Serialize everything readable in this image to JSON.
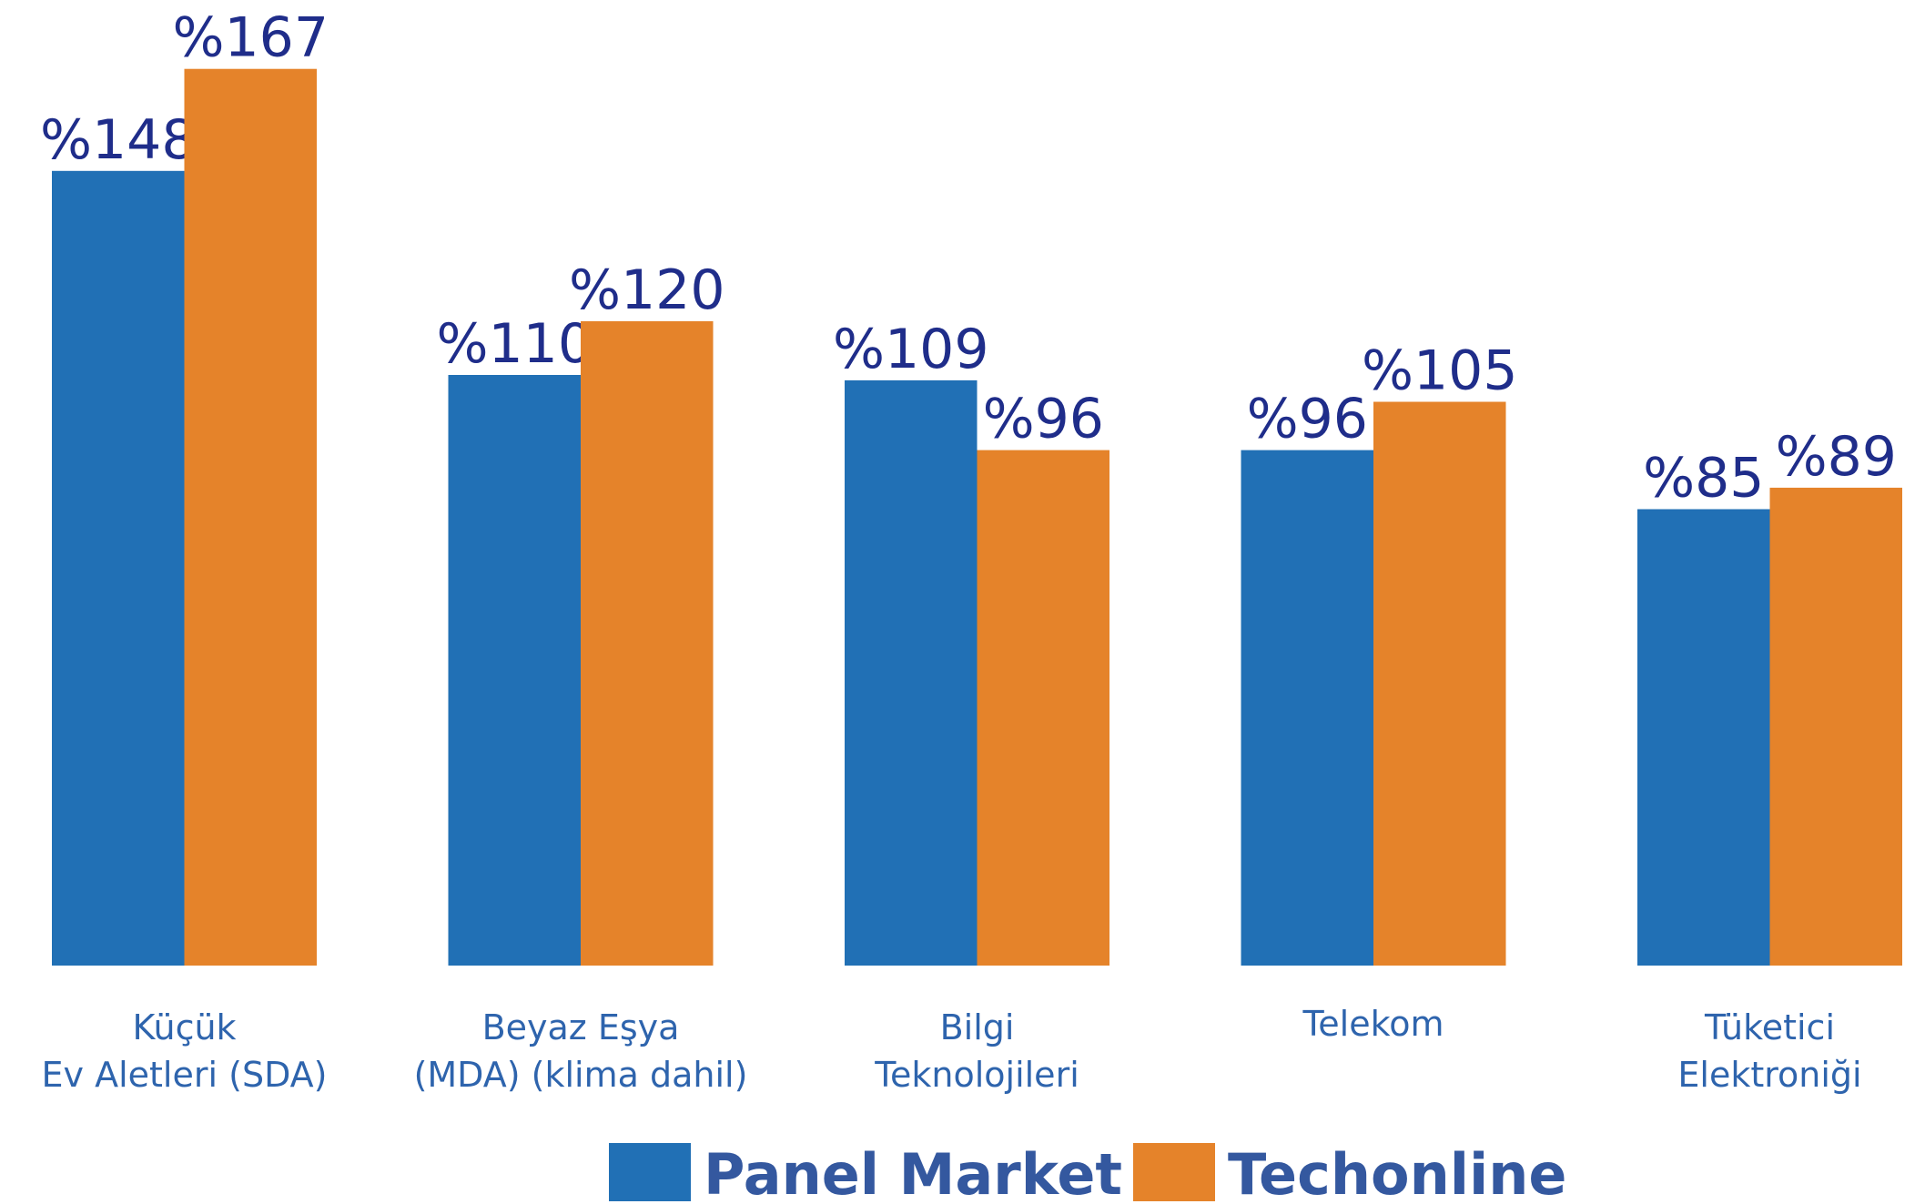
{
  "chart_data": {
    "type": "bar",
    "categories": [
      [
        "Küçük",
        "Ev Aletleri (SDA)"
      ],
      [
        "Beyaz Eşya",
        "(MDA) (klima dahil)"
      ],
      [
        "Bilgi",
        "Teknolojileri"
      ],
      [
        "Telekom"
      ],
      [
        "Tüketici",
        "Elektroniği"
      ]
    ],
    "series": [
      {
        "name": "Panel Market",
        "color": "#2170b5",
        "values": [
          148,
          110,
          109,
          96,
          85
        ],
        "value_labels": [
          "%148",
          "%110",
          "%109",
          "%96",
          "%85"
        ]
      },
      {
        "name": "Techonline",
        "color": "#e5832a",
        "values": [
          167,
          120,
          96,
          105,
          89
        ],
        "value_labels": [
          "%167",
          "%120",
          "%96",
          "%105",
          "%89"
        ]
      }
    ],
    "legend": "bottom"
  }
}
